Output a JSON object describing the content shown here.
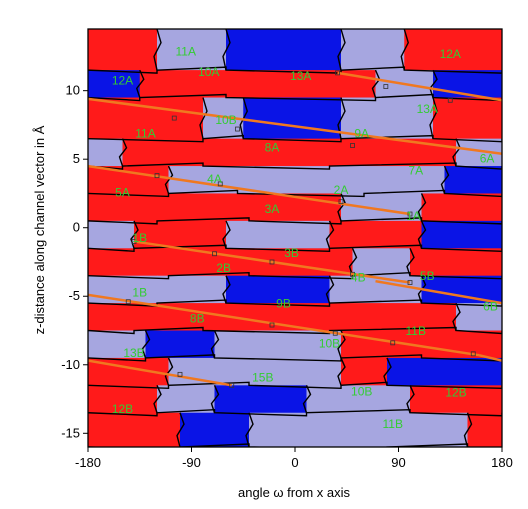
{
  "chart_data": {
    "type": "heatmap",
    "title": "",
    "xlabel": "angle ω from x axis",
    "ylabel": "z-distance along channel vector in Å",
    "xlim": [
      -180,
      180
    ],
    "ylim": [
      -16,
      14.5
    ],
    "xticks": [
      -180,
      -90,
      0,
      90,
      180
    ],
    "yticks": [
      -15,
      -10,
      -5,
      0,
      5,
      10
    ],
    "legend": "none",
    "grid": false,
    "colors": {
      "red": "#ff1a1a",
      "blue": "#0a14e6",
      "lavender": "#a6a6e0",
      "boundary": "#000000",
      "path": "#f07820",
      "label": "#33cc33"
    },
    "bands": [
      {
        "y0": 11.5,
        "y1": 14.5,
        "segments": [
          {
            "x0": -180,
            "x1": -120,
            "c": "red"
          },
          {
            "x0": -120,
            "x1": -60,
            "c": "lavender"
          },
          {
            "x0": -60,
            "x1": 40,
            "c": "blue"
          },
          {
            "x0": 40,
            "x1": 95,
            "c": "lavender"
          },
          {
            "x0": 95,
            "x1": 180,
            "c": "red"
          }
        ]
      },
      {
        "y0": 9.5,
        "y1": 11.5,
        "segments": [
          {
            "x0": -180,
            "x1": -135,
            "c": "blue"
          },
          {
            "x0": -135,
            "x1": -60,
            "c": "red"
          },
          {
            "x0": -60,
            "x1": 70,
            "c": "red"
          },
          {
            "x0": 70,
            "x1": 120,
            "c": "lavender"
          },
          {
            "x0": 120,
            "x1": 180,
            "c": "blue"
          }
        ]
      },
      {
        "y0": 6.5,
        "y1": 9.5,
        "segments": [
          {
            "x0": -180,
            "x1": -80,
            "c": "red"
          },
          {
            "x0": -80,
            "x1": -45,
            "c": "lavender"
          },
          {
            "x0": -45,
            "x1": 40,
            "c": "blue"
          },
          {
            "x0": 40,
            "x1": 120,
            "c": "lavender"
          },
          {
            "x0": 120,
            "x1": 180,
            "c": "red"
          }
        ]
      },
      {
        "y0": 4.5,
        "y1": 6.5,
        "segments": [
          {
            "x0": -180,
            "x1": -150,
            "c": "lavender"
          },
          {
            "x0": -150,
            "x1": -80,
            "c": "red"
          },
          {
            "x0": -80,
            "x1": 30,
            "c": "red"
          },
          {
            "x0": 30,
            "x1": 140,
            "c": "red"
          },
          {
            "x0": 140,
            "x1": 180,
            "c": "lavender"
          }
        ]
      },
      {
        "y0": 2.5,
        "y1": 4.5,
        "segments": [
          {
            "x0": -180,
            "x1": -110,
            "c": "red"
          },
          {
            "x0": -110,
            "x1": -50,
            "c": "lavender"
          },
          {
            "x0": -50,
            "x1": 60,
            "c": "lavender"
          },
          {
            "x0": 60,
            "x1": 130,
            "c": "lavender"
          },
          {
            "x0": 130,
            "x1": 180,
            "c": "blue"
          }
        ]
      },
      {
        "y0": 0.5,
        "y1": 2.5,
        "segments": [
          {
            "x0": -180,
            "x1": -120,
            "c": "red"
          },
          {
            "x0": -120,
            "x1": -40,
            "c": "red"
          },
          {
            "x0": -40,
            "x1": 40,
            "c": "red"
          },
          {
            "x0": 40,
            "x1": 110,
            "c": "lavender"
          },
          {
            "x0": 110,
            "x1": 180,
            "c": "red"
          }
        ]
      },
      {
        "y0": -1.5,
        "y1": 0.5,
        "segments": [
          {
            "x0": -180,
            "x1": -140,
            "c": "lavender"
          },
          {
            "x0": -140,
            "x1": -60,
            "c": "red"
          },
          {
            "x0": -60,
            "x1": 30,
            "c": "lavender"
          },
          {
            "x0": 30,
            "x1": 110,
            "c": "red"
          },
          {
            "x0": 110,
            "x1": 180,
            "c": "blue"
          }
        ]
      },
      {
        "y0": -3.5,
        "y1": -1.5,
        "segments": [
          {
            "x0": -180,
            "x1": -110,
            "c": "red"
          },
          {
            "x0": -110,
            "x1": -40,
            "c": "red"
          },
          {
            "x0": -40,
            "x1": 50,
            "c": "red"
          },
          {
            "x0": 50,
            "x1": 100,
            "c": "lavender"
          },
          {
            "x0": 100,
            "x1": 180,
            "c": "red"
          }
        ]
      },
      {
        "y0": -5.5,
        "y1": -3.5,
        "segments": [
          {
            "x0": -180,
            "x1": -120,
            "c": "lavender"
          },
          {
            "x0": -120,
            "x1": -60,
            "c": "lavender"
          },
          {
            "x0": -60,
            "x1": 30,
            "c": "blue"
          },
          {
            "x0": 30,
            "x1": 110,
            "c": "lavender"
          },
          {
            "x0": 110,
            "x1": 180,
            "c": "blue"
          }
        ]
      },
      {
        "y0": -7.5,
        "y1": -5.5,
        "segments": [
          {
            "x0": -180,
            "x1": -140,
            "c": "red"
          },
          {
            "x0": -140,
            "x1": -80,
            "c": "red"
          },
          {
            "x0": -80,
            "x1": 30,
            "c": "red"
          },
          {
            "x0": 30,
            "x1": 140,
            "c": "red"
          },
          {
            "x0": 140,
            "x1": 180,
            "c": "lavender"
          }
        ]
      },
      {
        "y0": -9.5,
        "y1": -7.5,
        "segments": [
          {
            "x0": -180,
            "x1": -130,
            "c": "lavender"
          },
          {
            "x0": -130,
            "x1": -70,
            "c": "blue"
          },
          {
            "x0": -70,
            "x1": 40,
            "c": "lavender"
          },
          {
            "x0": 40,
            "x1": 110,
            "c": "red"
          },
          {
            "x0": 110,
            "x1": 180,
            "c": "red"
          }
        ]
      },
      {
        "y0": -11.5,
        "y1": -9.5,
        "segments": [
          {
            "x0": -180,
            "x1": -110,
            "c": "red"
          },
          {
            "x0": -110,
            "x1": -40,
            "c": "lavender"
          },
          {
            "x0": -40,
            "x1": 40,
            "c": "lavender"
          },
          {
            "x0": 40,
            "x1": 80,
            "c": "red"
          },
          {
            "x0": 80,
            "x1": 180,
            "c": "blue"
          }
        ]
      },
      {
        "y0": -13.5,
        "y1": -11.5,
        "segments": [
          {
            "x0": -180,
            "x1": -120,
            "c": "red"
          },
          {
            "x0": -120,
            "x1": -70,
            "c": "lavender"
          },
          {
            "x0": -70,
            "x1": 10,
            "c": "blue"
          },
          {
            "x0": 10,
            "x1": 100,
            "c": "lavender"
          },
          {
            "x0": 100,
            "x1": 180,
            "c": "red"
          }
        ]
      },
      {
        "y0": -16,
        "y1": -13.5,
        "segments": [
          {
            "x0": -180,
            "x1": -100,
            "c": "red"
          },
          {
            "x0": -100,
            "x1": -40,
            "c": "blue"
          },
          {
            "x0": -40,
            "x1": 80,
            "c": "lavender"
          },
          {
            "x0": 80,
            "x1": 150,
            "c": "lavender"
          },
          {
            "x0": 150,
            "x1": 180,
            "c": "red"
          }
        ]
      }
    ],
    "region_labels": [
      {
        "text": "11A",
        "x": -95,
        "y": 12.8
      },
      {
        "text": "12A",
        "x": 135,
        "y": 12.6
      },
      {
        "text": "10A",
        "x": -75,
        "y": 11.3
      },
      {
        "text": "13A",
        "x": 5,
        "y": 11.0
      },
      {
        "text": "12A",
        "x": -150,
        "y": 10.7
      },
      {
        "text": "13A",
        "x": 115,
        "y": 8.6
      },
      {
        "text": "10B",
        "x": -60,
        "y": 7.8
      },
      {
        "text": "11A",
        "x": -130,
        "y": 6.8
      },
      {
        "text": "9A",
        "x": 58,
        "y": 6.8
      },
      {
        "text": "8A",
        "x": -20,
        "y": 5.8
      },
      {
        "text": "6A",
        "x": 167,
        "y": 5.0
      },
      {
        "text": "7A",
        "x": 105,
        "y": 4.1
      },
      {
        "text": "4A",
        "x": -70,
        "y": 3.5
      },
      {
        "text": "2A",
        "x": 40,
        "y": 2.7
      },
      {
        "text": "5A",
        "x": -150,
        "y": 2.5
      },
      {
        "text": "3A",
        "x": -20,
        "y": 1.3
      },
      {
        "text": "1A",
        "x": 103,
        "y": 0.8
      },
      {
        "text": "1B",
        "x": -135,
        "y": -0.8
      },
      {
        "text": "3B",
        "x": -3,
        "y": -1.9
      },
      {
        "text": "2B",
        "x": -62,
        "y": -3.0
      },
      {
        "text": "4B",
        "x": 55,
        "y": -3.7
      },
      {
        "text": "5B",
        "x": 115,
        "y": -3.6
      },
      {
        "text": "1B",
        "x": -135,
        "y": -4.8
      },
      {
        "text": "9B",
        "x": -10,
        "y": -5.6
      },
      {
        "text": "6B",
        "x": 170,
        "y": -5.8
      },
      {
        "text": "8B",
        "x": -85,
        "y": -6.7
      },
      {
        "text": "11B",
        "x": 105,
        "y": -7.6
      },
      {
        "text": "10B",
        "x": 30,
        "y": -8.5
      },
      {
        "text": "13B",
        "x": -140,
        "y": -9.2
      },
      {
        "text": "15B",
        "x": -28,
        "y": -11.0
      },
      {
        "text": "10B",
        "x": 58,
        "y": -12.0
      },
      {
        "text": "12B",
        "x": 140,
        "y": -12.1
      },
      {
        "text": "12B",
        "x": -150,
        "y": -13.3
      },
      {
        "text": "11B",
        "x": 85,
        "y": -14.4
      }
    ],
    "path_lines": [
      {
        "x": [
          -180,
          180
        ],
        "y": [
          9.4,
          5.4
        ]
      },
      {
        "x": [
          37,
          180
        ],
        "y": [
          11.3,
          9.3
        ]
      },
      {
        "x": [
          -180,
          100
        ],
        "y": [
          4.5,
          1.0
        ]
      },
      {
        "x": [
          -140,
          100
        ],
        "y": [
          -1.0,
          -4.0
        ]
      },
      {
        "x": [
          70,
          180
        ],
        "y": [
          -3.9,
          -5.5
        ]
      },
      {
        "x": [
          -180,
          160
        ],
        "y": [
          -4.9,
          -9.3
        ]
      },
      {
        "x": [
          -180,
          -55
        ],
        "y": [
          -9.7,
          -11.5
        ]
      },
      {
        "x": [
          160,
          180
        ],
        "y": [
          -9.3,
          -9.7
        ]
      }
    ],
    "path_points": [
      {
        "x": 37,
        "y": 11.3
      },
      {
        "x": 79,
        "y": 10.3
      },
      {
        "x": 135,
        "y": 9.3
      },
      {
        "x": -105,
        "y": 8.0
      },
      {
        "x": -50,
        "y": 7.2
      },
      {
        "x": 50,
        "y": 6.0
      },
      {
        "x": -120,
        "y": 3.8
      },
      {
        "x": -65,
        "y": 3.2
      },
      {
        "x": 40,
        "y": 1.9
      },
      {
        "x": 100,
        "y": 1.0
      },
      {
        "x": -140,
        "y": -1.0
      },
      {
        "x": -70,
        "y": -1.9
      },
      {
        "x": -20,
        "y": -2.5
      },
      {
        "x": 50,
        "y": -3.4
      },
      {
        "x": 100,
        "y": -4.0
      },
      {
        "x": -145,
        "y": -5.4
      },
      {
        "x": -20,
        "y": -7.1
      },
      {
        "x": 35,
        "y": -7.7
      },
      {
        "x": 85,
        "y": -8.4
      },
      {
        "x": 155,
        "y": -9.2
      },
      {
        "x": -100,
        "y": -10.7
      },
      {
        "x": -55,
        "y": -11.5
      }
    ]
  }
}
